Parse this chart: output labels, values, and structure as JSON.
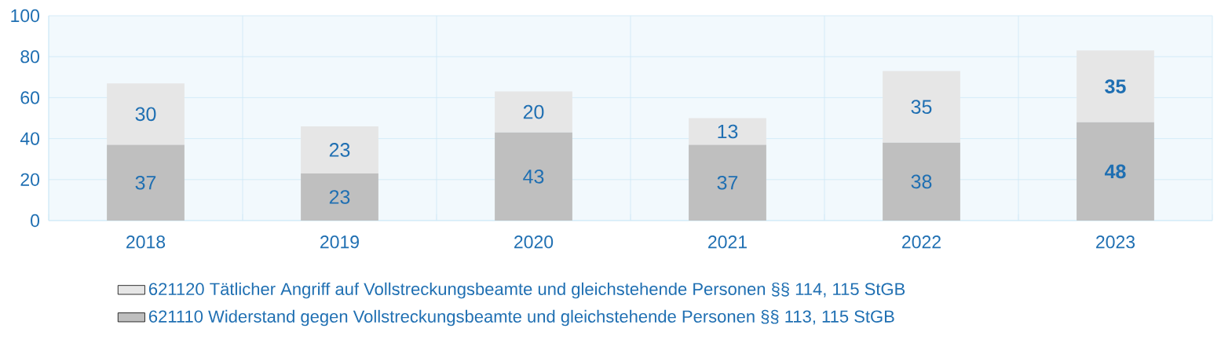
{
  "chart_data": {
    "type": "bar",
    "stacked": true,
    "categories": [
      "2018",
      "2019",
      "2020",
      "2021",
      "2022",
      "2023"
    ],
    "series": [
      {
        "name": "621110 Widerstand gegen Vollstreckungsbeamte und gleichstehende Personen §§ 113, 115 StGB",
        "color": "#bfbfbf",
        "values": [
          37,
          23,
          43,
          37,
          38,
          48
        ],
        "value_labels": [
          "37",
          "23",
          "43",
          "37",
          "38",
          "**48**"
        ]
      },
      {
        "name": "621120 Tätlicher Angriff auf Vollstreckungsbeamte und gleichstehende Personen §§ 114, 115 StGB",
        "color": "#e6e6e6",
        "values": [
          30,
          23,
          20,
          13,
          35,
          35
        ],
        "value_labels": [
          "30",
          "23",
          "20",
          "13",
          "35",
          "**35**"
        ]
      }
    ],
    "ylim": [
      0,
      100
    ],
    "yticks": [
      0,
      20,
      40,
      60,
      80,
      100
    ],
    "grid": true,
    "legend": "bottom"
  }
}
